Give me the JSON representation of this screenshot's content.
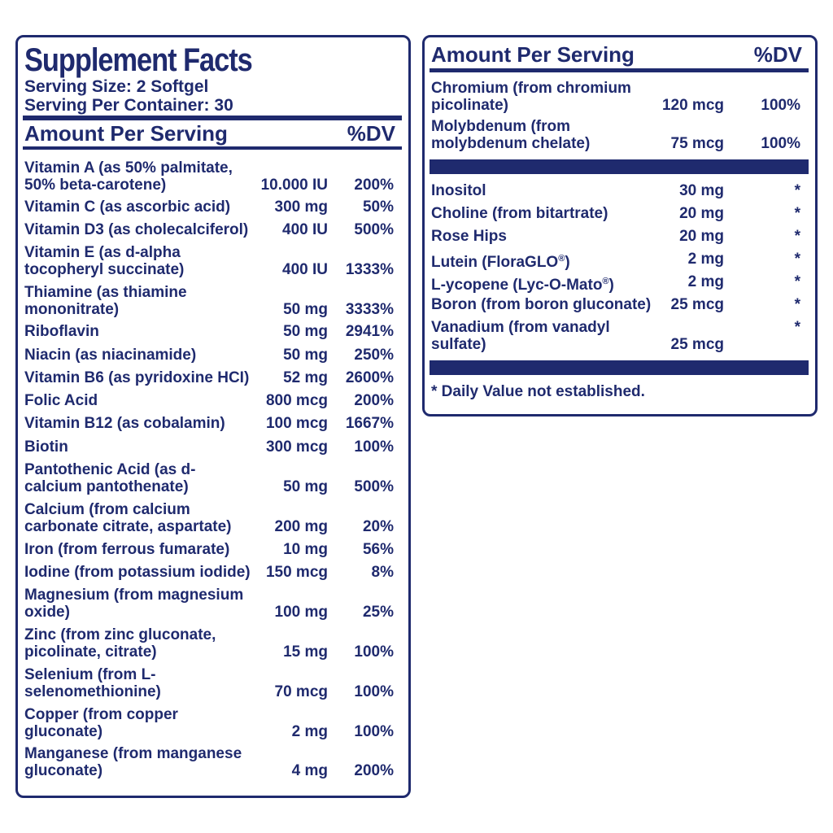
{
  "left": {
    "title": "Supplement Facts",
    "serving_size": "Serving Size: 2 Softgel",
    "servings_per_container": "Serving Per Container: 30",
    "header_amount": "Amount Per Serving",
    "header_dv": "%DV",
    "rows": [
      {
        "name": "Vitamin A (as 50% palmitate,\n50% beta-carotene)",
        "amount": "10.000 IU",
        "dv": "200%"
      },
      {
        "name": "Vitamin C (as ascorbic acid)",
        "amount": "300 mg",
        "dv": "50%"
      },
      {
        "name": "Vitamin D3 (as cholecalciferol)",
        "amount": "400 IU",
        "dv": "500%"
      },
      {
        "name": "Vitamin E (as d-alpha\ntocopheryl succinate)",
        "amount": "400 IU",
        "dv": "1333%"
      },
      {
        "name": "Thiamine (as thiamine\nmononitrate)",
        "amount": "50 mg",
        "dv": "3333%"
      },
      {
        "name": "Riboflavin",
        "amount": "50 mg",
        "dv": "2941%"
      },
      {
        "name": "Niacin (as niacinamide)",
        "amount": "50 mg",
        "dv": "250%"
      },
      {
        "name": "Vitamin B6 (as pyridoxine HCI)",
        "amount": "52 mg",
        "dv": "2600%"
      },
      {
        "name": "Folic Acid",
        "amount": "800 mcg",
        "dv": "200%"
      },
      {
        "name": "Vitamin B12 (as cobalamin)",
        "amount": "100 mcg",
        "dv": "1667%"
      },
      {
        "name": "Biotin",
        "amount": "300 mcg",
        "dv": "100%"
      },
      {
        "name": "Pantothenic Acid (as d-\ncalcium pantothenate)",
        "amount": "50 mg",
        "dv": "500%"
      },
      {
        "name": "Calcium (from calcium\ncarbonate citrate, aspartate)",
        "amount": "200 mg",
        "dv": "20%"
      },
      {
        "name": "Iron (from ferrous fumarate)",
        "amount": "10 mg",
        "dv": "56%"
      },
      {
        "name": "Iodine (from potassium iodide)",
        "amount": "150 mcg",
        "dv": "8%"
      },
      {
        "name": "Magnesium (from magnesium\noxide)",
        "amount": "100 mg",
        "dv": "25%"
      },
      {
        "name": "Zinc (from zinc gluconate,\npicolinate, citrate)",
        "amount": "15 mg",
        "dv": "100%"
      },
      {
        "name": "Selenium (from L-\nselenomethionine)",
        "amount": "70 mcg",
        "dv": "100%"
      },
      {
        "name": "Copper (from copper\ngluconate)",
        "amount": "2 mg",
        "dv": "100%"
      },
      {
        "name": "Manganese (from manganese\ngluconate)",
        "amount": "4 mg",
        "dv": "200%"
      }
    ]
  },
  "right": {
    "header_amount": "Amount Per Serving",
    "header_dv": "%DV",
    "rows_top": [
      {
        "name": "Chromium (from chromium\npicolinate)",
        "amount": "120 mcg",
        "dv": "100%"
      },
      {
        "name": "Molybdenum (from\nmolybdenum chelate)",
        "amount": "75 mcg",
        "dv": "100%"
      }
    ],
    "rows_bottom": [
      {
        "name": "Inositol",
        "amount": "30 mg",
        "dv": "*"
      },
      {
        "name": "Choline (from bitartrate)",
        "amount": "20 mg",
        "dv": "*"
      },
      {
        "name": "Rose Hips",
        "amount": "20 mg",
        "dv": "*"
      },
      {
        "name": "Lutein (FloraGLO",
        "sup": "®",
        "suffix": ")",
        "amount": "2 mg",
        "dv": "*"
      },
      {
        "name": "L-ycopene (Lyc-O-Mato",
        "sup": "®",
        "suffix": ")",
        "amount": "2 mg",
        "dv": "*"
      },
      {
        "name": "Boron (from boron gluconate)",
        "amount": "25 mcg",
        "dv": "*"
      },
      {
        "name": "Vanadium (from vanadyl\nsulfate)",
        "amount": "25 mcg",
        "dv": "*"
      }
    ],
    "footnote": "* Daily Value not established."
  }
}
